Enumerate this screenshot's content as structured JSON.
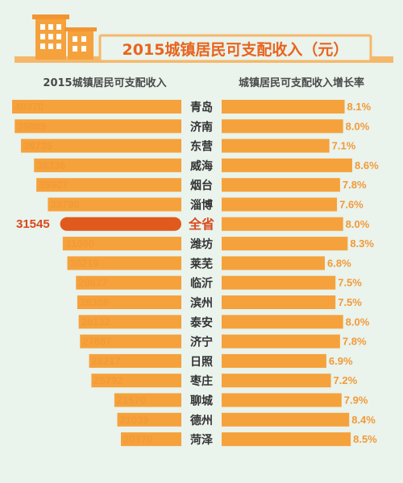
{
  "title": "2015城镇居民可支配收入（元）",
  "chart_data": {
    "type": "bar",
    "left_header": "2015城镇居民可支配收入",
    "right_header": "城镇居民可支配收入增长率",
    "highlight": "全省",
    "colors": {
      "bar": "#f5a23c",
      "highlight": "#e05a1e",
      "label": "#f29a38",
      "highlight_label": "#d9481b",
      "city": "#333333",
      "title": "#e8641e",
      "title_bar": "#f5b86a"
    },
    "rows": [
      {
        "city": "青岛",
        "income": 40370,
        "growth": "8.1%"
      },
      {
        "city": "济南",
        "income": 39889,
        "growth": "8.0%"
      },
      {
        "city": "东营",
        "income": 38735,
        "growth": "7.1%"
      },
      {
        "city": "威海",
        "income": 36336,
        "growth": "8.6%"
      },
      {
        "city": "烟台",
        "income": 35907,
        "growth": "7.8%"
      },
      {
        "city": "淄博",
        "income": 33790,
        "growth": "7.6%"
      },
      {
        "city": "全省",
        "income": 31545,
        "growth": "8.0%"
      },
      {
        "city": "潍坊",
        "income": 31060,
        "growth": "8.3%"
      },
      {
        "city": "莱芜",
        "income": 30219,
        "growth": "6.8%"
      },
      {
        "city": "临沂",
        "income": 28627,
        "growth": "7.5%"
      },
      {
        "city": "滨州",
        "income": 28388,
        "growth": "7.5%"
      },
      {
        "city": "泰安",
        "income": 28132,
        "growth": "8.0%"
      },
      {
        "city": "济宁",
        "income": 27887,
        "growth": "7.8%"
      },
      {
        "city": "日照",
        "income": 26217,
        "growth": "6.9%"
      },
      {
        "city": "枣庄",
        "income": 25792,
        "growth": "7.2%"
      },
      {
        "city": "聊城",
        "income": 21570,
        "growth": "7.9%"
      },
      {
        "city": "德州",
        "income": 21039,
        "growth": "8.4%"
      },
      {
        "city": "菏泽",
        "income": 20370,
        "growth": "8.5%"
      }
    ]
  }
}
